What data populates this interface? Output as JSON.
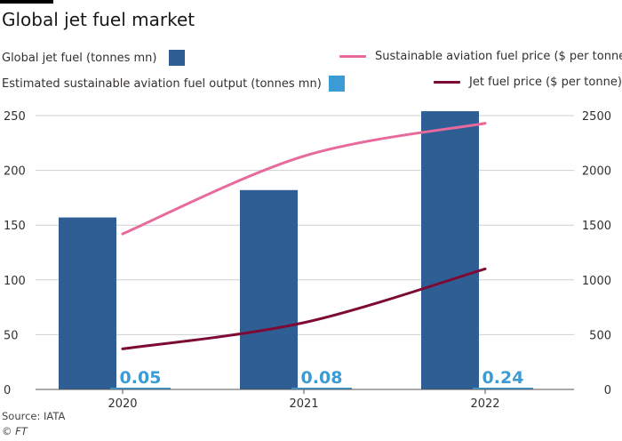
{
  "title": "Global jet fuel market",
  "source": "Source: IATA",
  "credit": "© FT",
  "legend": [
    {
      "label": "Global jet fuel (tonnes mn)",
      "kind": "box",
      "color": "#2f5e94"
    },
    {
      "label": "Sustainable aviation fuel price ($ per tonne)",
      "kind": "line",
      "color": "#e8699b"
    },
    {
      "label": "Estimated sustainable aviation fuel output (tonnes mn)",
      "kind": "box",
      "color": "#3b9bd5"
    },
    {
      "label": "Jet fuel price ($ per tonne)",
      "kind": "line",
      "color": "#7d0a35"
    }
  ],
  "chart_data": {
    "type": "bar",
    "categories": [
      "2020",
      "2021",
      "2022"
    ],
    "left_axis": {
      "ylim": [
        0,
        250
      ],
      "ticks": [
        0,
        50,
        100,
        150,
        200,
        250
      ]
    },
    "right_axis": {
      "ylim": [
        0,
        2500
      ],
      "ticks": [
        0,
        500,
        1000,
        1500,
        2000,
        2500
      ]
    },
    "series": [
      {
        "name": "Global jet fuel (tonnes mn)",
        "type": "bar",
        "axis": "left",
        "color": "#2f5e94",
        "values": [
          157,
          182,
          254
        ]
      },
      {
        "name": "Estimated sustainable aviation fuel output (tonnes mn)",
        "type": "bar",
        "axis": "left",
        "color": "#3b9bd5",
        "values": [
          0.05,
          0.08,
          0.24
        ],
        "labels": [
          "0.05",
          "0.08",
          "0.24"
        ]
      },
      {
        "name": "Sustainable aviation fuel price ($ per tonne)",
        "type": "line",
        "axis": "right",
        "color": "#e8699b",
        "values": [
          1420,
          2130,
          2430
        ]
      },
      {
        "name": "Jet fuel price ($ per tonne)",
        "type": "line",
        "axis": "right",
        "color": "#7d0a35",
        "values": [
          370,
          610,
          1100
        ]
      }
    ],
    "grid": true
  }
}
